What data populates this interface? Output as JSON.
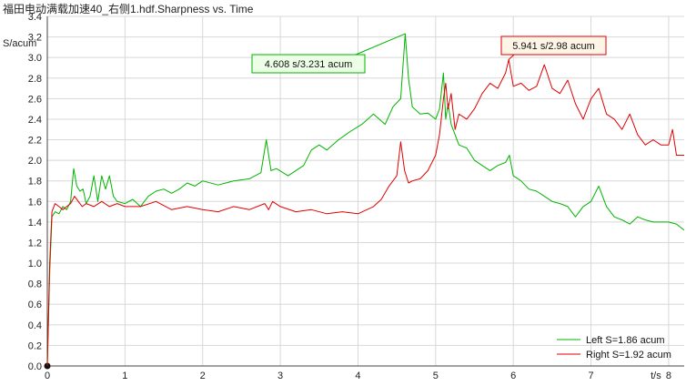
{
  "title": "福田电动满载加速40_右侧1.hdf.Sharpness vs. Time",
  "chart_data": {
    "type": "line",
    "title": "福田电动满载加速40_右侧1.hdf.Sharpness vs. Time",
    "xlabel": "t/s",
    "ylabel": "S/acum",
    "xlim": [
      0,
      8.2
    ],
    "ylim": [
      0,
      3.4
    ],
    "x_ticks": [
      0,
      1,
      2,
      3,
      4,
      5,
      6,
      7,
      8
    ],
    "y_ticks": [
      "0.0",
      "0.2",
      "0.4",
      "0.6",
      "0.8",
      "1.0",
      "1.2",
      "1.4",
      "1.6",
      "1.8",
      "2.0",
      "2.2",
      "2.4",
      "2.6",
      "2.8",
      "3.0",
      "3.2",
      "3.4"
    ],
    "grid": true,
    "legend_position": "bottom-right",
    "series": [
      {
        "name": "Left S=1.86 acum",
        "color": "#00b400",
        "x": [
          0,
          0.03,
          0.06,
          0.1,
          0.15,
          0.2,
          0.25,
          0.3,
          0.34,
          0.38,
          0.42,
          0.46,
          0.5,
          0.55,
          0.6,
          0.65,
          0.7,
          0.75,
          0.8,
          0.85,
          0.9,
          1.0,
          1.1,
          1.2,
          1.3,
          1.4,
          1.5,
          1.6,
          1.7,
          1.8,
          1.9,
          2.0,
          2.2,
          2.4,
          2.6,
          2.75,
          2.82,
          2.88,
          2.95,
          3.1,
          3.3,
          3.4,
          3.5,
          3.6,
          3.75,
          3.9,
          4.05,
          4.2,
          4.35,
          4.45,
          4.55,
          4.608,
          4.65,
          4.7,
          4.8,
          4.9,
          5.0,
          5.05,
          5.1,
          5.13,
          5.16,
          5.2,
          5.3,
          5.4,
          5.5,
          5.6,
          5.7,
          5.8,
          5.9,
          5.95,
          6.0,
          6.1,
          6.2,
          6.3,
          6.4,
          6.5,
          6.6,
          6.7,
          6.8,
          6.9,
          7.0,
          7.1,
          7.2,
          7.3,
          7.4,
          7.5,
          7.6,
          7.7,
          7.8,
          7.9,
          8.0,
          8.1,
          8.2
        ],
        "y": [
          0.0,
          0.9,
          1.45,
          1.5,
          1.48,
          1.55,
          1.52,
          1.6,
          1.92,
          1.75,
          1.7,
          1.72,
          1.58,
          1.65,
          1.85,
          1.6,
          1.85,
          1.72,
          1.85,
          1.65,
          1.6,
          1.58,
          1.62,
          1.55,
          1.65,
          1.7,
          1.72,
          1.68,
          1.72,
          1.78,
          1.75,
          1.8,
          1.76,
          1.8,
          1.82,
          1.88,
          2.2,
          1.9,
          1.92,
          1.85,
          1.95,
          2.1,
          2.15,
          2.1,
          2.2,
          2.28,
          2.35,
          2.45,
          2.35,
          2.52,
          2.6,
          3.231,
          2.8,
          2.52,
          2.45,
          2.46,
          2.4,
          2.5,
          2.85,
          2.4,
          2.55,
          2.35,
          2.15,
          2.12,
          2.0,
          1.95,
          1.9,
          1.95,
          1.98,
          2.05,
          1.85,
          1.8,
          1.72,
          1.7,
          1.65,
          1.6,
          1.58,
          1.55,
          1.45,
          1.55,
          1.6,
          1.75,
          1.55,
          1.45,
          1.42,
          1.38,
          1.45,
          1.42,
          1.4,
          1.4,
          1.4,
          1.38,
          1.32
        ]
      },
      {
        "name": "Right S=1.92 acum",
        "color": "#e00000",
        "x": [
          0,
          0.03,
          0.06,
          0.1,
          0.15,
          0.2,
          0.25,
          0.3,
          0.35,
          0.4,
          0.45,
          0.5,
          0.6,
          0.7,
          0.8,
          0.9,
          1.0,
          1.2,
          1.4,
          1.6,
          1.8,
          2.0,
          2.2,
          2.4,
          2.6,
          2.8,
          2.85,
          2.9,
          3.0,
          3.2,
          3.4,
          3.6,
          3.8,
          4.0,
          4.2,
          4.3,
          4.4,
          4.5,
          4.55,
          4.6,
          4.65,
          4.7,
          4.8,
          4.9,
          5.0,
          5.05,
          5.1,
          5.13,
          5.16,
          5.2,
          5.25,
          5.3,
          5.4,
          5.5,
          5.6,
          5.7,
          5.8,
          5.9,
          5.941,
          6.0,
          6.1,
          6.2,
          6.3,
          6.4,
          6.5,
          6.6,
          6.7,
          6.8,
          6.9,
          7.0,
          7.1,
          7.2,
          7.3,
          7.4,
          7.5,
          7.6,
          7.7,
          7.8,
          7.9,
          8.0,
          8.05,
          8.1,
          8.2
        ],
        "y": [
          0.0,
          1.0,
          1.5,
          1.58,
          1.55,
          1.52,
          1.55,
          1.58,
          1.65,
          1.6,
          1.55,
          1.58,
          1.55,
          1.6,
          1.55,
          1.58,
          1.55,
          1.55,
          1.6,
          1.52,
          1.55,
          1.52,
          1.5,
          1.55,
          1.52,
          1.58,
          1.52,
          1.6,
          1.55,
          1.5,
          1.52,
          1.48,
          1.5,
          1.48,
          1.55,
          1.62,
          1.75,
          1.85,
          2.18,
          1.9,
          1.78,
          1.8,
          1.82,
          1.9,
          2.05,
          2.25,
          2.6,
          2.75,
          2.5,
          2.65,
          2.3,
          2.45,
          2.4,
          2.5,
          2.65,
          2.75,
          2.7,
          2.85,
          2.98,
          2.72,
          2.75,
          2.68,
          2.72,
          2.93,
          2.7,
          2.65,
          2.78,
          2.55,
          2.4,
          2.6,
          2.7,
          2.45,
          2.4,
          2.3,
          2.45,
          2.25,
          2.15,
          2.2,
          2.15,
          2.15,
          2.3,
          2.05,
          2.05
        ]
      }
    ],
    "annotations": [
      {
        "text": "4.608 s/3.231 acum",
        "x": 4.608,
        "y": 3.231,
        "series": 0
      },
      {
        "text": "5.941 s/2.98 acum",
        "x": 5.941,
        "y": 2.98,
        "series": 1
      }
    ]
  }
}
